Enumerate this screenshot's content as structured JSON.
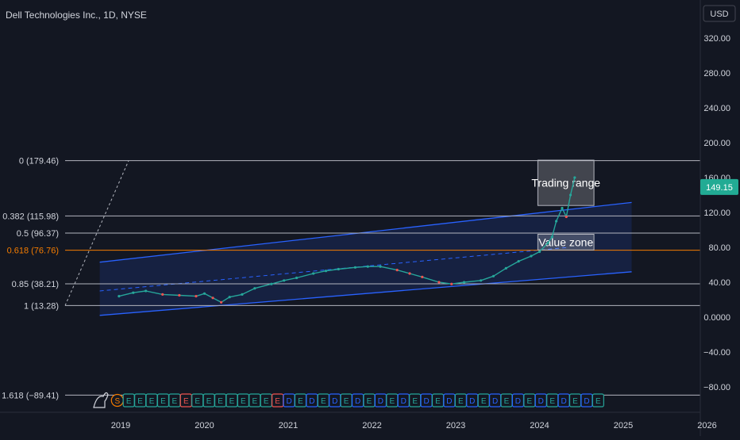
{
  "header": {
    "title": "Dell Technologies Inc., 1D, NYSE",
    "currency": "USD"
  },
  "price_badge": "149.15",
  "colors": {
    "background": "#131722",
    "axis_text": "#d1d4dc",
    "grid_line": "#ffffff",
    "channel_line": "#2962ff",
    "fib_highlight": "#f57c00",
    "price_badge": "#22ab94",
    "up": "#26a69a",
    "down": "#ef5350",
    "earnings_icon": "#26a69a",
    "earnings_neg": "#ef5350",
    "dividend_icon": "#2962ff"
  },
  "fib_levels": [
    {
      "label": "0 (179.46)",
      "value": 179.46
    },
    {
      "label": "0.382 (115.98)",
      "value": 115.98
    },
    {
      "label": "0.5 (96.37)",
      "value": 96.37
    },
    {
      "label": "0.618 (76.76)",
      "value": 76.76,
      "highlight": true
    },
    {
      "label": "0.85 (38.21)",
      "value": 38.21
    },
    {
      "label": "1 (13.28)",
      "value": 13.28
    },
    {
      "label": "1.618 (−89.41)",
      "value": -89.41
    }
  ],
  "annotations": [
    {
      "text": "Trading range",
      "x0": 2023.98,
      "x1": 2024.65,
      "y0": 128,
      "y1": 180
    },
    {
      "text": "Value zone",
      "x0": 2023.98,
      "x1": 2024.65,
      "y0": 77,
      "y1": 95
    }
  ],
  "events": {
    "start_icons": [
      "S",
      "E"
    ],
    "icons": [
      "E",
      "E",
      "E",
      "E",
      "E",
      "E",
      "E",
      "E",
      "E",
      "E",
      "E",
      "E",
      "E",
      "D",
      "E",
      "D",
      "E",
      "D",
      "E",
      "D",
      "E",
      "D",
      "E",
      "D",
      "E",
      "D",
      "E",
      "D",
      "E",
      "D",
      "E",
      "D",
      "E",
      "D",
      "E",
      "D",
      "E",
      "D",
      "E",
      "D",
      "E"
    ],
    "x_start": 2018.96,
    "x_end": 2024.7
  },
  "chart_data": {
    "type": "line",
    "title": "Dell Technologies Inc., 1D, NYSE",
    "xlabel": "",
    "ylabel": "USD",
    "x_ticks": [
      "2019",
      "2020",
      "2021",
      "2022",
      "2023",
      "2024",
      "2025",
      "2026"
    ],
    "x_range": [
      2018.5,
      2026
    ],
    "y_ticks": [
      320,
      280,
      240,
      200,
      160,
      120,
      80,
      40,
      0,
      -40,
      -80
    ],
    "y_tick_labels": [
      "320.00",
      "280.00",
      "240.00",
      "200.00",
      "160.00",
      "120.00",
      "80.00",
      "40.00",
      "0.0000",
      "−40.00",
      "−80.00"
    ],
    "ylim": [
      -110,
      350
    ],
    "last_price": 149.15,
    "series": [
      {
        "x": [
          2018.98,
          2019.15,
          2019.3,
          2019.5,
          2019.7,
          2019.9,
          2020.0,
          2020.1,
          2020.2,
          2020.3,
          2020.45,
          2020.6,
          2020.8,
          2020.95,
          2021.1,
          2021.3,
          2021.45,
          2021.6,
          2021.8,
          2021.95,
          2022.1,
          2022.3,
          2022.45,
          2022.6,
          2022.8,
          2022.95,
          2023.1,
          2023.3,
          2023.45,
          2023.6,
          2023.75,
          2023.9,
          2024.0,
          2024.1,
          2024.15,
          2024.2,
          2024.27,
          2024.32,
          2024.37,
          2024.42
        ],
        "values": [
          24,
          28,
          30,
          26,
          25,
          24,
          27,
          22,
          17,
          23,
          26,
          33,
          38,
          42,
          45,
          50,
          53,
          55,
          57,
          58,
          58,
          54,
          50,
          46,
          40,
          38,
          40,
          42,
          47,
          56,
          64,
          70,
          75,
          85,
          92,
          110,
          125,
          115,
          140,
          160
        ]
      }
    ],
    "channel": {
      "upper": [
        [
          2018.75,
          63
        ],
        [
          2023.85,
          118
        ]
      ],
      "middle": [
        [
          2018.75,
          30
        ],
        [
          2024.35,
          80
        ]
      ],
      "lower": [
        [
          2018.75,
          2
        ],
        [
          2025.1,
          52
        ]
      ],
      "x_end": 2025.1
    }
  }
}
